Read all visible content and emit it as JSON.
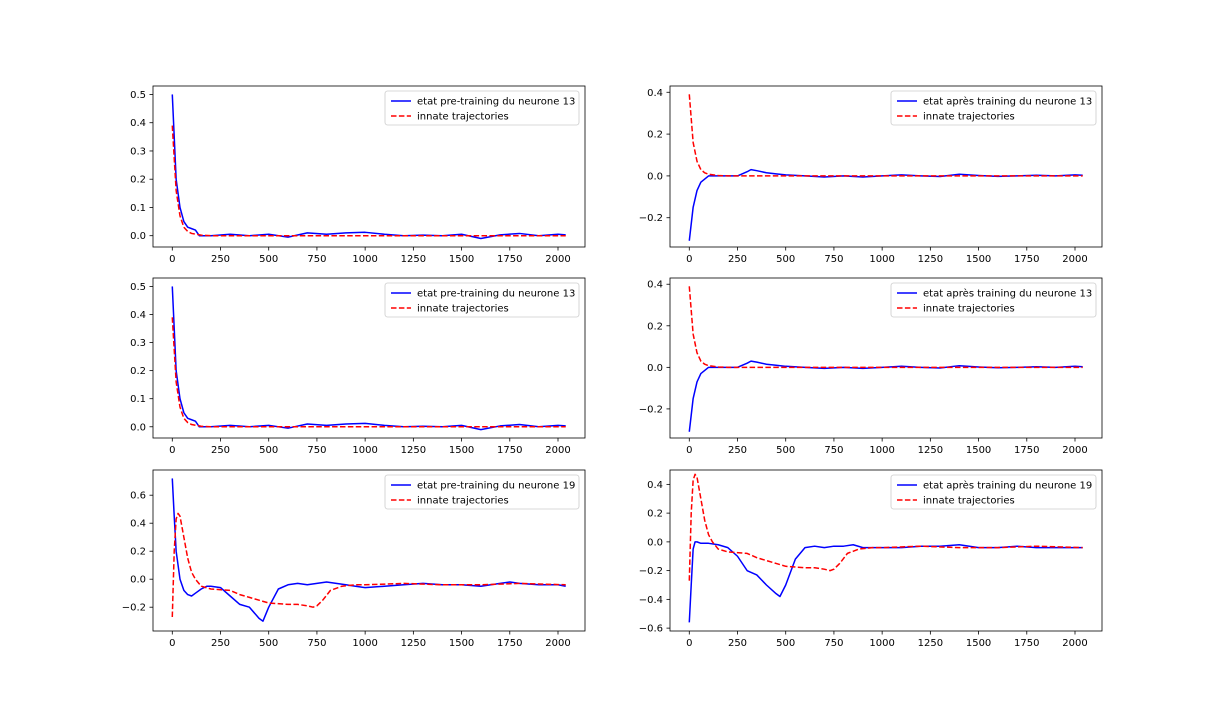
{
  "colors": {
    "blue": "#0000ff",
    "red": "#ff0000"
  },
  "chart_data": [
    {
      "type": "line",
      "legend": {
        "placement": "top-right",
        "entries": [
          "etat pre-training du neurone 13",
          "innate trajectories"
        ]
      },
      "xlim": [
        -100,
        2140
      ],
      "ylim": [
        -0.04,
        0.53
      ],
      "xticks": [
        0,
        250,
        500,
        750,
        1000,
        1250,
        1500,
        1750,
        2000
      ],
      "yticks": [
        0.0,
        0.1,
        0.2,
        0.3,
        0.4,
        0.5
      ],
      "ytick_labels": [
        "0.0",
        "0.1",
        "0.2",
        "0.3",
        "0.4",
        "0.5"
      ],
      "series": [
        {
          "name": "etat pre-training du neurone 13",
          "color": "#0000ff",
          "style": "solid",
          "x": [
            0,
            20,
            40,
            60,
            80,
            100,
            120,
            140,
            200,
            300,
            400,
            500,
            600,
            700,
            800,
            900,
            1000,
            1100,
            1200,
            1300,
            1400,
            1500,
            1600,
            1700,
            1800,
            1900,
            2000,
            2040
          ],
          "y": [
            0.5,
            0.2,
            0.1,
            0.05,
            0.03,
            0.025,
            0.02,
            0.0,
            0.0,
            0.005,
            0.0,
            0.005,
            -0.005,
            0.01,
            0.005,
            0.01,
            0.012,
            0.005,
            0.0,
            0.002,
            0.0,
            0.005,
            -0.01,
            0.003,
            0.008,
            0.0,
            0.005,
            0.003
          ]
        },
        {
          "name": "innate trajectories",
          "color": "#ff0000",
          "style": "dashed",
          "x": [
            0,
            20,
            40,
            60,
            80,
            100,
            150,
            200,
            300,
            500,
            1000,
            1500,
            2040
          ],
          "y": [
            0.39,
            0.16,
            0.07,
            0.03,
            0.015,
            0.008,
            0.002,
            0.0,
            0.0,
            0.0,
            0.0,
            0.0,
            0.0
          ]
        }
      ]
    },
    {
      "type": "line",
      "legend": {
        "placement": "top-right",
        "entries": [
          "etat après training du neurone 13",
          "innate trajectories"
        ]
      },
      "xlim": [
        -100,
        2140
      ],
      "ylim": [
        -0.34,
        0.43
      ],
      "xticks": [
        0,
        250,
        500,
        750,
        1000,
        1250,
        1500,
        1750,
        2000
      ],
      "yticks": [
        -0.2,
        0.0,
        0.2,
        0.4
      ],
      "ytick_labels": [
        "−0.2",
        "0.0",
        "0.2",
        "0.4"
      ],
      "series": [
        {
          "name": "etat après training du neurone 13",
          "color": "#0000ff",
          "style": "solid",
          "x": [
            0,
            20,
            40,
            60,
            80,
            100,
            150,
            200,
            250,
            300,
            320,
            350,
            400,
            450,
            500,
            600,
            700,
            800,
            900,
            1000,
            1100,
            1200,
            1300,
            1400,
            1500,
            1600,
            1700,
            1800,
            1900,
            2000,
            2040
          ],
          "y": [
            -0.31,
            -0.15,
            -0.07,
            -0.03,
            -0.015,
            0.0,
            0.0,
            0.0,
            0.0,
            0.02,
            0.03,
            0.025,
            0.015,
            0.01,
            0.005,
            0.0,
            -0.005,
            0.0,
            -0.005,
            0.0,
            0.005,
            0.0,
            -0.003,
            0.008,
            0.002,
            -0.002,
            0.0,
            0.003,
            0.0,
            0.005,
            0.003
          ]
        },
        {
          "name": "innate trajectories",
          "color": "#ff0000",
          "style": "dashed",
          "x": [
            0,
            20,
            40,
            60,
            80,
            100,
            150,
            200,
            300,
            500,
            1000,
            1500,
            2040
          ],
          "y": [
            0.39,
            0.16,
            0.07,
            0.03,
            0.015,
            0.008,
            0.002,
            0.0,
            0.0,
            0.0,
            0.0,
            0.0,
            0.0
          ]
        }
      ]
    },
    {
      "type": "line",
      "legend": {
        "placement": "top-right",
        "entries": [
          "etat pre-training du neurone 13",
          "innate trajectories"
        ]
      },
      "xlim": [
        -100,
        2140
      ],
      "ylim": [
        -0.04,
        0.53
      ],
      "xticks": [
        0,
        250,
        500,
        750,
        1000,
        1250,
        1500,
        1750,
        2000
      ],
      "yticks": [
        0.0,
        0.1,
        0.2,
        0.3,
        0.4,
        0.5
      ],
      "ytick_labels": [
        "0.0",
        "0.1",
        "0.2",
        "0.3",
        "0.4",
        "0.5"
      ],
      "series": [
        {
          "name": "etat pre-training du neurone 13",
          "color": "#0000ff",
          "style": "solid",
          "x": [
            0,
            20,
            40,
            60,
            80,
            100,
            120,
            140,
            200,
            300,
            400,
            500,
            600,
            700,
            800,
            900,
            1000,
            1100,
            1200,
            1300,
            1400,
            1500,
            1600,
            1700,
            1800,
            1900,
            2000,
            2040
          ],
          "y": [
            0.5,
            0.2,
            0.1,
            0.05,
            0.03,
            0.025,
            0.02,
            0.0,
            0.0,
            0.005,
            0.0,
            0.005,
            -0.005,
            0.01,
            0.005,
            0.01,
            0.012,
            0.005,
            0.0,
            0.002,
            0.0,
            0.005,
            -0.01,
            0.003,
            0.008,
            0.0,
            0.005,
            0.003
          ]
        },
        {
          "name": "innate trajectories",
          "color": "#ff0000",
          "style": "dashed",
          "x": [
            0,
            20,
            40,
            60,
            80,
            100,
            150,
            200,
            300,
            500,
            1000,
            1500,
            2040
          ],
          "y": [
            0.39,
            0.16,
            0.07,
            0.03,
            0.015,
            0.008,
            0.002,
            0.0,
            0.0,
            0.0,
            0.0,
            0.0,
            0.0
          ]
        }
      ]
    },
    {
      "type": "line",
      "legend": {
        "placement": "top-right",
        "entries": [
          "etat après training du neurone 13",
          "innate trajectories"
        ]
      },
      "xlim": [
        -100,
        2140
      ],
      "ylim": [
        -0.34,
        0.43
      ],
      "xticks": [
        0,
        250,
        500,
        750,
        1000,
        1250,
        1500,
        1750,
        2000
      ],
      "yticks": [
        -0.2,
        0.0,
        0.2,
        0.4
      ],
      "ytick_labels": [
        "−0.2",
        "0.0",
        "0.2",
        "0.4"
      ],
      "series": [
        {
          "name": "etat après training du neurone 13",
          "color": "#0000ff",
          "style": "solid",
          "x": [
            0,
            20,
            40,
            60,
            80,
            100,
            150,
            200,
            250,
            300,
            320,
            350,
            400,
            450,
            500,
            600,
            700,
            800,
            900,
            1000,
            1100,
            1200,
            1300,
            1400,
            1500,
            1600,
            1700,
            1800,
            1900,
            2000,
            2040
          ],
          "y": [
            -0.31,
            -0.15,
            -0.07,
            -0.03,
            -0.015,
            0.0,
            0.0,
            0.0,
            0.0,
            0.02,
            0.03,
            0.025,
            0.015,
            0.01,
            0.005,
            0.0,
            -0.005,
            0.0,
            -0.005,
            0.0,
            0.005,
            0.0,
            -0.003,
            0.008,
            0.002,
            -0.002,
            0.0,
            0.003,
            0.0,
            0.005,
            0.003
          ]
        },
        {
          "name": "innate trajectories",
          "color": "#ff0000",
          "style": "dashed",
          "x": [
            0,
            20,
            40,
            60,
            80,
            100,
            150,
            200,
            300,
            500,
            1000,
            1500,
            2040
          ],
          "y": [
            0.39,
            0.16,
            0.07,
            0.03,
            0.015,
            0.008,
            0.002,
            0.0,
            0.0,
            0.0,
            0.0,
            0.0,
            0.0
          ]
        }
      ]
    },
    {
      "type": "line",
      "legend": {
        "placement": "top-right",
        "entries": [
          "etat pre-training du neurone 19",
          "innate trajectories"
        ]
      },
      "xlim": [
        -100,
        2140
      ],
      "ylim": [
        -0.37,
        0.78
      ],
      "xticks": [
        0,
        250,
        500,
        750,
        1000,
        1250,
        1500,
        1750,
        2000
      ],
      "yticks": [
        -0.2,
        0.0,
        0.2,
        0.4,
        0.6
      ],
      "ytick_labels": [
        "−0.2",
        "0.0",
        "0.2",
        "0.4",
        "0.6"
      ],
      "series": [
        {
          "name": "etat pre-training du neurone 19",
          "color": "#0000ff",
          "style": "solid",
          "x": [
            0,
            10,
            20,
            40,
            60,
            80,
            100,
            120,
            150,
            180,
            200,
            250,
            300,
            350,
            400,
            450,
            470,
            500,
            550,
            600,
            650,
            700,
            750,
            800,
            850,
            900,
            950,
            1000,
            1100,
            1200,
            1300,
            1400,
            1500,
            1600,
            1700,
            1750,
            1800,
            1900,
            2000,
            2040
          ],
          "y": [
            0.72,
            0.45,
            0.2,
            0.0,
            -0.08,
            -0.11,
            -0.12,
            -0.1,
            -0.07,
            -0.05,
            -0.05,
            -0.06,
            -0.12,
            -0.18,
            -0.2,
            -0.28,
            -0.3,
            -0.2,
            -0.07,
            -0.04,
            -0.03,
            -0.04,
            -0.03,
            -0.02,
            -0.03,
            -0.04,
            -0.05,
            -0.06,
            -0.05,
            -0.04,
            -0.03,
            -0.04,
            -0.04,
            -0.05,
            -0.03,
            -0.02,
            -0.03,
            -0.04,
            -0.04,
            -0.05
          ]
        },
        {
          "name": "innate trajectories",
          "color": "#ff0000",
          "style": "dashed",
          "x": [
            0,
            10,
            20,
            30,
            40,
            60,
            80,
            100,
            120,
            150,
            200,
            300,
            350,
            400,
            450,
            500,
            600,
            650,
            700,
            730,
            750,
            780,
            820,
            880,
            950,
            1000,
            1200,
            1400,
            1600,
            1800,
            2040
          ],
          "y": [
            -0.27,
            0.2,
            0.43,
            0.47,
            0.45,
            0.3,
            0.15,
            0.05,
            0.0,
            -0.05,
            -0.07,
            -0.08,
            -0.11,
            -0.13,
            -0.15,
            -0.17,
            -0.18,
            -0.18,
            -0.19,
            -0.2,
            -0.19,
            -0.15,
            -0.08,
            -0.05,
            -0.04,
            -0.04,
            -0.03,
            -0.04,
            -0.04,
            -0.03,
            -0.04
          ]
        }
      ]
    },
    {
      "type": "line",
      "legend": {
        "placement": "top-right",
        "entries": [
          "etat après training du neurone 19",
          "innate trajectories"
        ]
      },
      "xlim": [
        -100,
        2140
      ],
      "ylim": [
        -0.62,
        0.5
      ],
      "xticks": [
        0,
        250,
        500,
        750,
        1000,
        1250,
        1500,
        1750,
        2000
      ],
      "yticks": [
        -0.6,
        -0.4,
        -0.2,
        0.0,
        0.2,
        0.4
      ],
      "ytick_labels": [
        "−0.6",
        "−0.4",
        "−0.2",
        "0.0",
        "0.2",
        "0.4"
      ],
      "series": [
        {
          "name": "etat après training du neurone 19",
          "color": "#0000ff",
          "style": "solid",
          "x": [
            0,
            10,
            20,
            30,
            40,
            60,
            80,
            100,
            150,
            200,
            250,
            300,
            350,
            400,
            450,
            470,
            500,
            550,
            600,
            650,
            700,
            750,
            800,
            850,
            900,
            950,
            1000,
            1100,
            1200,
            1300,
            1400,
            1500,
            1600,
            1700,
            1800,
            1900,
            2000,
            2040
          ],
          "y": [
            -0.56,
            -0.3,
            -0.05,
            0.0,
            0.0,
            -0.01,
            -0.01,
            -0.01,
            -0.02,
            -0.04,
            -0.1,
            -0.2,
            -0.23,
            -0.3,
            -0.36,
            -0.38,
            -0.3,
            -0.12,
            -0.04,
            -0.03,
            -0.04,
            -0.03,
            -0.03,
            -0.02,
            -0.04,
            -0.04,
            -0.04,
            -0.04,
            -0.03,
            -0.03,
            -0.02,
            -0.04,
            -0.04,
            -0.03,
            -0.04,
            -0.04,
            -0.04,
            -0.04
          ]
        },
        {
          "name": "innate trajectories",
          "color": "#ff0000",
          "style": "dashed",
          "x": [
            0,
            10,
            20,
            30,
            40,
            60,
            80,
            100,
            120,
            150,
            200,
            300,
            350,
            400,
            450,
            500,
            600,
            650,
            700,
            730,
            750,
            780,
            820,
            880,
            950,
            1000,
            1200,
            1400,
            1600,
            1800,
            2040
          ],
          "y": [
            -0.27,
            0.2,
            0.43,
            0.47,
            0.45,
            0.3,
            0.15,
            0.05,
            0.0,
            -0.05,
            -0.07,
            -0.08,
            -0.11,
            -0.13,
            -0.15,
            -0.17,
            -0.18,
            -0.18,
            -0.19,
            -0.2,
            -0.19,
            -0.15,
            -0.08,
            -0.05,
            -0.04,
            -0.04,
            -0.03,
            -0.04,
            -0.04,
            -0.03,
            -0.04
          ]
        }
      ]
    }
  ]
}
